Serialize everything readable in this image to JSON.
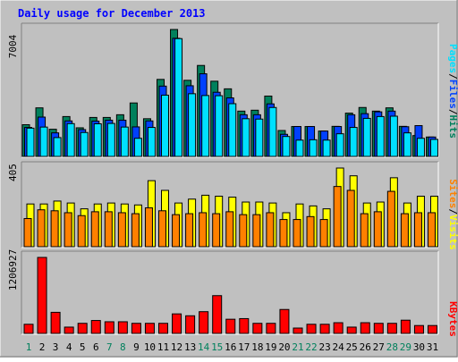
{
  "chart_data": [
    {
      "type": "bar",
      "panel": "pages_files_hits",
      "title": "Daily usage for December 2013",
      "ylabel_max": "7004",
      "legend": [
        "Pages",
        "/",
        "Files",
        "/",
        "Hits"
      ],
      "legend_placement": "right (vertical)",
      "ymax": 7004,
      "categories": [
        "1",
        "2",
        "3",
        "4",
        "5",
        "6",
        "7",
        "8",
        "9",
        "10",
        "11",
        "12",
        "13",
        "14",
        "15",
        "16",
        "17",
        "18",
        "19",
        "20",
        "21",
        "22",
        "23",
        "24",
        "25",
        "26",
        "27",
        "28",
        "29",
        "30",
        "31"
      ],
      "series": [
        {
          "name": "Hits",
          "values": [
            1750,
            2680,
            1500,
            2200,
            1580,
            2150,
            2150,
            2300,
            2950,
            2080,
            4250,
            7004,
            4200,
            5020,
            4150,
            3730,
            2500,
            2550,
            3330,
            1430,
            1650,
            1650,
            1400,
            1660,
            2390,
            2700,
            2500,
            2680,
            1660,
            1150,
            1070
          ]
        },
        {
          "name": "Files",
          "values": [
            1600,
            2170,
            1300,
            1960,
            1480,
            1950,
            2000,
            2000,
            1630,
            1960,
            3880,
            6520,
            3900,
            4560,
            3540,
            3230,
            2300,
            2300,
            2900,
            1220,
            1650,
            1650,
            1400,
            1650,
            2300,
            2360,
            2460,
            2500,
            1640,
            1700,
            1070
          ]
        },
        {
          "name": "Pages",
          "values": [
            1560,
            1620,
            1040,
            1810,
            1320,
            1800,
            1820,
            1620,
            1000,
            1600,
            3380,
            6500,
            3460,
            3360,
            3350,
            2910,
            2080,
            2060,
            2700,
            1100,
            900,
            920,
            900,
            1250,
            1600,
            2100,
            2200,
            2220,
            1300,
            1000,
            940
          ]
        }
      ]
    },
    {
      "type": "bar",
      "panel": "sites_visits",
      "ylabel_max": "405",
      "legend": [
        "Sites",
        "/",
        "Visits"
      ],
      "legend_placement": "right (vertical)",
      "ymax": 405,
      "categories": [
        "1",
        "2",
        "3",
        "4",
        "5",
        "6",
        "7",
        "8",
        "9",
        "10",
        "11",
        "12",
        "13",
        "14",
        "15",
        "16",
        "17",
        "18",
        "19",
        "20",
        "21",
        "22",
        "23",
        "24",
        "25",
        "26",
        "27",
        "28",
        "29",
        "30",
        "31"
      ],
      "series": [
        {
          "name": "Visits",
          "values": [
            220,
            220,
            235,
            225,
            195,
            220,
            225,
            220,
            215,
            340,
            290,
            225,
            245,
            265,
            260,
            255,
            230,
            230,
            225,
            175,
            220,
            210,
            195,
            405,
            365,
            225,
            230,
            355,
            225,
            260,
            260
          ]
        },
        {
          "name": "Sites",
          "values": [
            145,
            190,
            185,
            175,
            160,
            180,
            180,
            175,
            170,
            200,
            185,
            165,
            170,
            175,
            170,
            180,
            165,
            165,
            175,
            140,
            140,
            155,
            140,
            310,
            290,
            170,
            180,
            285,
            170,
            175,
            175
          ]
        }
      ]
    },
    {
      "type": "bar",
      "panel": "kbytes",
      "ylabel_max": "1206927",
      "legend": [
        "KBytes"
      ],
      "legend_placement": "right (vertical)",
      "ymax": 1206927,
      "categories": [
        "1",
        "2",
        "3",
        "4",
        "5",
        "6",
        "7",
        "8",
        "9",
        "10",
        "11",
        "12",
        "13",
        "14",
        "15",
        "16",
        "17",
        "18",
        "19",
        "20",
        "21",
        "22",
        "23",
        "24",
        "25",
        "26",
        "27",
        "28",
        "29",
        "30",
        "31"
      ],
      "series": [
        {
          "name": "KBytes",
          "values": [
            145000,
            1206927,
            335000,
            100000,
            160000,
            205000,
            185000,
            185000,
            160000,
            160000,
            160000,
            310000,
            280000,
            345000,
            600000,
            225000,
            235000,
            160000,
            160000,
            380000,
            85000,
            145000,
            145000,
            170000,
            100000,
            170000,
            160000,
            160000,
            210000,
            125000,
            125000
          ]
        }
      ]
    }
  ],
  "day_labels": [
    "1",
    "2",
    "3",
    "4",
    "5",
    "6",
    "7",
    "8",
    "9",
    "10",
    "11",
    "12",
    "13",
    "14",
    "15",
    "16",
    "17",
    "18",
    "19",
    "20",
    "21",
    "22",
    "23",
    "24",
    "25",
    "26",
    "27",
    "28",
    "29",
    "30",
    "31"
  ],
  "weekend_days": [
    "1",
    "7",
    "8",
    "14",
    "15",
    "21",
    "22",
    "28",
    "29"
  ],
  "colors": {
    "background": "#c0c0c0",
    "title": "#0000ff",
    "hits": "#00805c",
    "files": "#0040ff",
    "pages": "#00e0ff",
    "visits": "#ffff00",
    "sites": "#ff8000",
    "kbytes": "#ff0000",
    "weekend_label": "#00805c",
    "weekday_label": "#000000"
  }
}
